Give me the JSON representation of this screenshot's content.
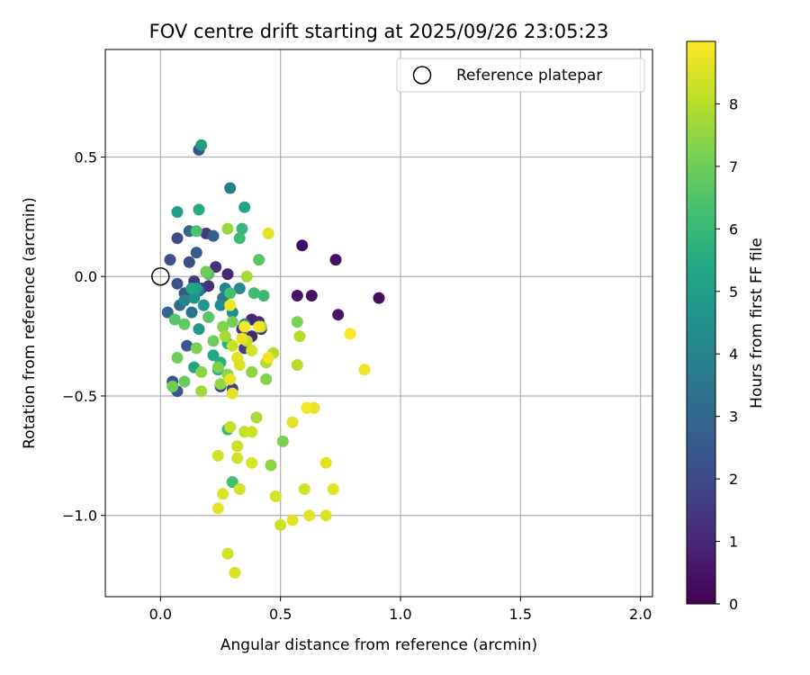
{
  "chart_data": {
    "type": "scatter",
    "title": "FOV centre drift starting at 2025/09/26 23:05:23",
    "xlabel": "Angular distance from reference (arcmin)",
    "ylabel": "Rotation from reference (arcmin)",
    "xlim": [
      -0.23,
      2.05
    ],
    "ylim": [
      -1.34,
      0.95
    ],
    "xticks": [
      0.0,
      0.5,
      1.0,
      1.5,
      2.0
    ],
    "xtick_labels": [
      "0.0",
      "0.5",
      "1.0",
      "1.5",
      "2.0"
    ],
    "yticks": [
      0.5,
      0.0,
      -0.5,
      -1.0
    ],
    "ytick_labels": [
      "0.5",
      "0.0",
      "−0.5",
      "−1.0"
    ],
    "grid": true,
    "legend": {
      "position": "top-right",
      "entries": [
        "Reference platepar"
      ]
    },
    "reference_point": {
      "x": 0.0,
      "y": 0.0
    },
    "colorbar": {
      "label": "Hours from first FF file",
      "range": [
        0,
        9
      ],
      "ticks": [
        0,
        1,
        2,
        3,
        4,
        5,
        6,
        7,
        8
      ],
      "colormap": "viridis"
    },
    "points": [
      [
        0.59,
        0.13,
        0.3
      ],
      [
        0.73,
        0.07,
        0.4
      ],
      [
        0.91,
        -0.09,
        0.3
      ],
      [
        0.57,
        -0.08,
        0.5
      ],
      [
        0.63,
        -0.08,
        0.4
      ],
      [
        0.74,
        -0.16,
        0.6
      ],
      [
        0.28,
        0.01,
        1.0
      ],
      [
        0.23,
        0.04,
        1.2
      ],
      [
        0.2,
        -0.04,
        1.3
      ],
      [
        0.17,
        -0.05,
        1.4
      ],
      [
        0.14,
        -0.02,
        1.5
      ],
      [
        0.19,
        0.18,
        1.5
      ],
      [
        0.38,
        -0.18,
        0.9
      ],
      [
        0.41,
        -0.19,
        1.1
      ],
      [
        0.42,
        -0.22,
        1.2
      ],
      [
        0.38,
        -0.25,
        1.0
      ],
      [
        0.34,
        -0.22,
        1.4
      ],
      [
        0.35,
        -0.3,
        1.6
      ],
      [
        0.25,
        -0.46,
        1.7
      ],
      [
        0.3,
        -0.47,
        1.9
      ],
      [
        0.16,
        0.53,
        2.3
      ],
      [
        0.07,
        0.16,
        2.0
      ],
      [
        0.12,
        0.06,
        2.1
      ],
      [
        0.04,
        0.07,
        2.2
      ],
      [
        0.07,
        -0.03,
        2.3
      ],
      [
        0.1,
        -0.07,
        2.4
      ],
      [
        0.05,
        -0.44,
        2.2
      ],
      [
        0.07,
        -0.48,
        2.4
      ],
      [
        0.11,
        -0.29,
        2.5
      ],
      [
        0.15,
        0.1,
        2.6
      ],
      [
        0.22,
        0.17,
        2.7
      ],
      [
        0.12,
        0.19,
        2.9
      ],
      [
        0.03,
        -0.15,
        3.0
      ],
      [
        0.08,
        -0.12,
        3.2
      ],
      [
        0.13,
        -0.15,
        3.4
      ],
      [
        0.16,
        -0.06,
        3.5
      ],
      [
        0.26,
        -0.09,
        3.6
      ],
      [
        0.29,
        0.37,
        3.8
      ],
      [
        0.27,
        -0.05,
        4.0
      ],
      [
        0.33,
        -0.05,
        4.2
      ],
      [
        0.25,
        -0.12,
        4.3
      ],
      [
        0.3,
        -0.15,
        4.4
      ],
      [
        0.35,
        -0.2,
        4.5
      ],
      [
        0.1,
        -0.1,
        4.0
      ],
      [
        0.14,
        -0.09,
        4.5
      ],
      [
        0.18,
        -0.12,
        4.6
      ],
      [
        0.16,
        -0.22,
        4.8
      ],
      [
        0.17,
        0.55,
        5.0
      ],
      [
        0.07,
        0.27,
        5.1
      ],
      [
        0.35,
        0.29,
        5.2
      ],
      [
        0.15,
        -0.05,
        5.0
      ],
      [
        0.13,
        -0.05,
        5.3
      ],
      [
        0.14,
        -0.38,
        5.2
      ],
      [
        0.22,
        -0.33,
        5.4
      ],
      [
        0.25,
        -0.36,
        5.6
      ],
      [
        0.24,
        -0.39,
        5.7
      ],
      [
        0.28,
        -0.28,
        5.8
      ],
      [
        0.16,
        0.28,
        5.5
      ],
      [
        0.34,
        0.2,
        6.0
      ],
      [
        0.43,
        -0.08,
        6.1
      ],
      [
        0.39,
        -0.07,
        6.2
      ],
      [
        0.29,
        -0.07,
        6.3
      ],
      [
        0.33,
        0.16,
        6.1
      ],
      [
        0.28,
        -0.64,
        6.0
      ],
      [
        0.3,
        -0.86,
        6.3
      ],
      [
        0.2,
        0.01,
        6.5
      ],
      [
        0.15,
        0.19,
        6.4
      ],
      [
        0.41,
        0.07,
        6.6
      ],
      [
        0.2,
        -0.17,
        6.6
      ],
      [
        0.1,
        -0.2,
        6.8
      ],
      [
        0.06,
        -0.18,
        6.6
      ],
      [
        0.1,
        -0.44,
        6.9
      ],
      [
        0.05,
        -0.46,
        7.0
      ],
      [
        0.07,
        -0.34,
        7.0
      ],
      [
        0.22,
        -0.27,
        7.0
      ],
      [
        0.15,
        -0.3,
        7.2
      ],
      [
        0.17,
        -0.4,
        7.4
      ],
      [
        0.24,
        -0.38,
        7.2
      ],
      [
        0.26,
        -0.21,
        7.3
      ],
      [
        0.3,
        -0.19,
        7.1
      ],
      [
        0.19,
        0.02,
        7.0
      ],
      [
        0.25,
        -0.45,
        7.5
      ],
      [
        0.28,
        -0.41,
        7.4
      ],
      [
        0.38,
        -0.4,
        7.5
      ],
      [
        0.44,
        -0.43,
        7.3
      ],
      [
        0.57,
        -0.19,
        7.2
      ],
      [
        0.51,
        -0.69,
        7.2
      ],
      [
        0.46,
        -0.79,
        7.4
      ],
      [
        0.17,
        -0.48,
        7.7
      ],
      [
        0.28,
        0.2,
        7.6
      ],
      [
        0.36,
        -0.0,
        7.8
      ],
      [
        0.42,
        -0.21,
        7.8
      ],
      [
        0.44,
        -0.36,
        7.9
      ],
      [
        0.47,
        -0.32,
        8.0
      ],
      [
        0.57,
        -0.37,
        8.0
      ],
      [
        0.58,
        -0.25,
        8.0
      ],
      [
        0.27,
        -0.25,
        7.8
      ],
      [
        0.3,
        -0.29,
        8.2
      ],
      [
        0.36,
        -0.27,
        8.1
      ],
      [
        0.4,
        -0.59,
        7.8
      ],
      [
        0.35,
        -0.65,
        8.2
      ],
      [
        0.38,
        -0.65,
        8.3
      ],
      [
        0.29,
        -0.63,
        8.2
      ],
      [
        0.32,
        -0.71,
        8.3
      ],
      [
        0.32,
        -0.76,
        8.4
      ],
      [
        0.38,
        -0.78,
        8.5
      ],
      [
        0.24,
        -0.75,
        8.4
      ],
      [
        0.26,
        -0.91,
        8.5
      ],
      [
        0.24,
        -0.97,
        8.6
      ],
      [
        0.28,
        -1.16,
        8.4
      ],
      [
        0.31,
        -1.24,
        8.5
      ],
      [
        0.33,
        -0.89,
        8.4
      ],
      [
        0.48,
        -0.92,
        8.4
      ],
      [
        0.5,
        -1.04,
        8.3
      ],
      [
        0.55,
        -1.02,
        8.6
      ],
      [
        0.6,
        -0.89,
        8.4
      ],
      [
        0.62,
        -1.0,
        8.6
      ],
      [
        0.69,
        -1.0,
        8.5
      ],
      [
        0.72,
        -0.89,
        8.6
      ],
      [
        0.69,
        -0.78,
        8.6
      ],
      [
        0.55,
        -0.61,
        8.6
      ],
      [
        0.64,
        -0.55,
        8.7
      ],
      [
        0.61,
        -0.55,
        8.9
      ],
      [
        0.45,
        0.18,
        8.6
      ],
      [
        0.41,
        -0.21,
        8.8
      ],
      [
        0.35,
        -0.21,
        8.9
      ],
      [
        0.32,
        -0.34,
        8.6
      ],
      [
        0.34,
        -0.26,
        8.7
      ],
      [
        0.79,
        -0.24,
        9.0
      ],
      [
        0.85,
        -0.39,
        8.8
      ],
      [
        0.29,
        -0.43,
        8.7
      ],
      [
        0.29,
        -0.12,
        8.8
      ],
      [
        0.45,
        -0.34,
        8.8
      ],
      [
        0.33,
        -0.37,
        8.5
      ],
      [
        0.38,
        -0.31,
        8.4
      ],
      [
        0.3,
        -0.49,
        8.6
      ]
    ]
  }
}
